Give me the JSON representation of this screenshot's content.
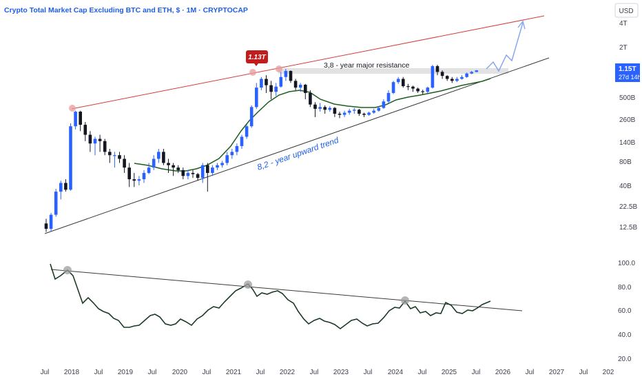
{
  "header": {
    "title": "Crypto Total Market Cap Excluding BTC and ETH, $ · 1M · CRYPTOCAP",
    "currency_button": "USD"
  },
  "price_badge": {
    "value": "1.15T",
    "countdown": "27d 14h"
  },
  "chart_data": [
    {
      "type": "candlestick",
      "scale": "log",
      "y_ticks": [
        "4T",
        "2T",
        "500B",
        "260B",
        "140B",
        "80B",
        "40B",
        "22.5B",
        "12.5B"
      ],
      "x_ticks": [
        "Jul",
        "2018",
        "Jul",
        "2019",
        "Jul",
        "2020",
        "Jul",
        "2021",
        "Jul",
        "2022",
        "Jul",
        "2023",
        "Jul",
        "2024",
        "Jul",
        "2025",
        "Jul",
        "2026",
        "Jul",
        "2027",
        "Jul",
        "202"
      ],
      "annotations": {
        "peak_label": "1.13T",
        "resistance_text": "3,8 - year major resistance",
        "trend_text": "8,2 - year upward trend"
      },
      "colors": {
        "up": "#2962ff",
        "down": "#131722",
        "ma": "#1b5e20",
        "upper_line": "#d33b3b",
        "trend_line": "#3a3a3a",
        "projection": "#7fa3f0"
      },
      "candles": [
        [
          14,
          12,
          16,
          11
        ],
        [
          12,
          18,
          19,
          11
        ],
        [
          18,
          35,
          38,
          17
        ],
        [
          35,
          45,
          48,
          28
        ],
        [
          45,
          37,
          50,
          35
        ],
        [
          37,
          230,
          250,
          36
        ],
        [
          230,
          350,
          360,
          210
        ],
        [
          350,
          240,
          360,
          200
        ],
        [
          240,
          180,
          260,
          150
        ],
        [
          180,
          140,
          200,
          110
        ],
        [
          140,
          160,
          170,
          100
        ],
        [
          160,
          150,
          180,
          110
        ],
        [
          150,
          110,
          160,
          100
        ],
        [
          110,
          100,
          120,
          80
        ],
        [
          100,
          100,
          110,
          70
        ],
        [
          100,
          90,
          110,
          80
        ],
        [
          90,
          70,
          100,
          60
        ],
        [
          70,
          50,
          80,
          40
        ],
        [
          50,
          48,
          60,
          40
        ],
        [
          48,
          50,
          55,
          42
        ],
        [
          50,
          60,
          65,
          45
        ],
        [
          60,
          70,
          80,
          58
        ],
        [
          70,
          90,
          100,
          65
        ],
        [
          90,
          110,
          120,
          80
        ],
        [
          110,
          80,
          120,
          75
        ],
        [
          80,
          75,
          90,
          60
        ],
        [
          75,
          70,
          80,
          55
        ],
        [
          70,
          65,
          75,
          60
        ],
        [
          65,
          55,
          70,
          50
        ],
        [
          55,
          60,
          65,
          50
        ],
        [
          60,
          58,
          65,
          52
        ],
        [
          58,
          52,
          60,
          48
        ],
        [
          52,
          75,
          80,
          45
        ],
        [
          75,
          60,
          80,
          35
        ],
        [
          60,
          70,
          75,
          55
        ],
        [
          70,
          75,
          80,
          65
        ],
        [
          75,
          80,
          85,
          70
        ],
        [
          80,
          100,
          110,
          75
        ],
        [
          100,
          110,
          120,
          90
        ],
        [
          110,
          130,
          140,
          100
        ],
        [
          130,
          170,
          180,
          120
        ],
        [
          170,
          230,
          240,
          160
        ],
        [
          230,
          400,
          420,
          220
        ],
        [
          400,
          700,
          800,
          380
        ],
        [
          700,
          900,
          950,
          650
        ],
        [
          900,
          750,
          1000,
          600
        ],
        [
          750,
          620,
          850,
          500
        ],
        [
          620,
          720,
          800,
          550
        ],
        [
          720,
          950,
          1100,
          700
        ],
        [
          950,
          1130,
          1200,
          850
        ],
        [
          1130,
          850,
          1150,
          800
        ],
        [
          850,
          700,
          900,
          650
        ],
        [
          700,
          760,
          800,
          620
        ],
        [
          760,
          600,
          780,
          500
        ],
        [
          600,
          430,
          650,
          400
        ],
        [
          430,
          380,
          460,
          300
        ],
        [
          380,
          400,
          450,
          350
        ],
        [
          400,
          370,
          420,
          330
        ],
        [
          370,
          390,
          410,
          350
        ],
        [
          390,
          330,
          400,
          300
        ],
        [
          330,
          320,
          350,
          290
        ],
        [
          320,
          340,
          360,
          300
        ],
        [
          340,
          360,
          380,
          320
        ],
        [
          360,
          370,
          390,
          330
        ],
        [
          370,
          330,
          380,
          310
        ],
        [
          330,
          320,
          340,
          300
        ],
        [
          320,
          340,
          350,
          310
        ],
        [
          340,
          360,
          380,
          330
        ],
        [
          360,
          390,
          410,
          350
        ],
        [
          390,
          470,
          500,
          380
        ],
        [
          470,
          600,
          650,
          450
        ],
        [
          600,
          820,
          850,
          580
        ],
        [
          820,
          900,
          950,
          780
        ],
        [
          900,
          730,
          950,
          700
        ],
        [
          730,
          720,
          780,
          650
        ],
        [
          720,
          680,
          740,
          620
        ],
        [
          680,
          630,
          700,
          600
        ],
        [
          630,
          620,
          660,
          580
        ],
        [
          620,
          700,
          720,
          600
        ],
        [
          700,
          1300,
          1350,
          680
        ],
        [
          1300,
          1100,
          1350,
          1000
        ],
        [
          1100,
          980,
          1150,
          900
        ],
        [
          980,
          900,
          1000,
          850
        ],
        [
          900,
          850,
          950,
          800
        ],
        [
          850,
          900,
          950,
          820
        ],
        [
          900,
          950,
          1000,
          880
        ],
        [
          950,
          1050,
          1080,
          930
        ],
        [
          1050,
          1100,
          1130,
          1030
        ],
        [
          1100,
          1150,
          1160,
          1090
        ]
      ]
    },
    {
      "type": "line",
      "y_ticks": [
        "100.0",
        "80.0",
        "60.0",
        "40.0",
        "20.0"
      ],
      "ylim": [
        20,
        100
      ]
    }
  ]
}
